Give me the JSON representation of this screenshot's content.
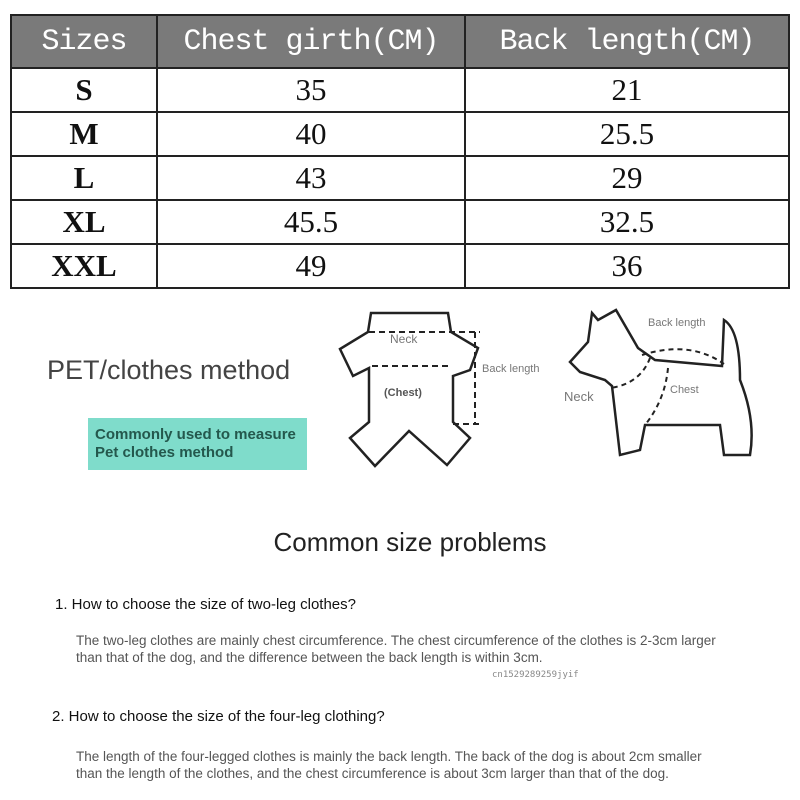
{
  "size_table": {
    "headers": [
      "Sizes",
      "Chest girth(CM)",
      "Back length(CM)"
    ],
    "rows": [
      [
        "S",
        "35",
        "21"
      ],
      [
        "M",
        "40",
        "25.5"
      ],
      [
        "L",
        "43",
        "29"
      ],
      [
        "XL",
        "45.5",
        "32.5"
      ],
      [
        "XXL",
        "49",
        "36"
      ]
    ]
  },
  "method": {
    "title": "PET/clothes method",
    "callout_line1": "Commonly used to measure",
    "callout_line2": "Pet clothes method",
    "callout_color": "#7fdccb"
  },
  "diagram_clothes": {
    "neck": "Neck",
    "chest": "(Chest)",
    "back_length": "Back length"
  },
  "diagram_dog": {
    "back_length": "Back length",
    "neck": "Neck",
    "chest": "Chest"
  },
  "faq": {
    "heading": "Common size problems",
    "items": [
      {
        "question": "1. How to choose the size of two-leg clothes?",
        "answer": "The two-leg clothes are mainly chest circumference. The chest circumference of the clothes is 2-3cm larger than that of the dog, and the difference between the back length is within 3cm."
      },
      {
        "question": "2. How to choose the size of the four-leg clothing?",
        "answer": "The length of the four-legged clothes is mainly the back length. The back of the dog is about 2cm smaller than the length of the clothes, and the chest circumference is about 3cm larger than that of the dog."
      }
    ]
  },
  "watermark": "cn1529289259jyif"
}
